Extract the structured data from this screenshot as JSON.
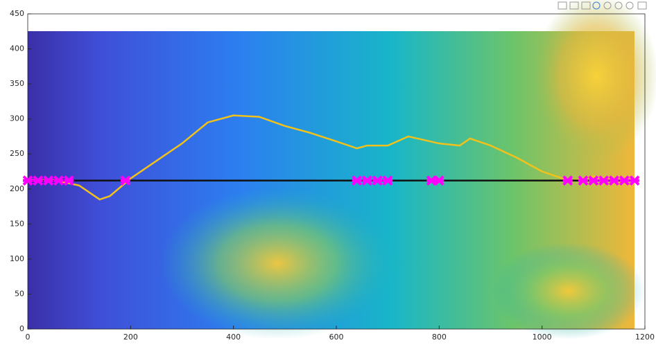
{
  "chart_data": {
    "type": "line",
    "xlim": [
      0,
      1200
    ],
    "xticks": [
      0,
      200,
      400,
      600,
      800,
      1000,
      1200
    ],
    "ylim": [
      0,
      450
    ],
    "yticks": [
      0,
      50,
      100,
      150,
      200,
      250,
      300,
      350,
      400,
      450
    ],
    "grid": false,
    "series": [
      {
        "color": "#f2c21b",
        "style": "line",
        "x": [
          0,
          50,
          100,
          140,
          160,
          200,
          250,
          300,
          350,
          400,
          450,
          500,
          550,
          600,
          640,
          660,
          700,
          740,
          800,
          840,
          860,
          900,
          950,
          1000,
          1040,
          1060,
          1100,
          1150,
          1180
        ],
        "values": [
          213,
          213,
          205,
          185,
          190,
          215,
          240,
          265,
          295,
          305,
          303,
          290,
          280,
          268,
          258,
          262,
          262,
          275,
          265,
          262,
          272,
          262,
          245,
          225,
          215,
          212,
          218,
          210,
          213
        ]
      },
      {
        "color": "#111111",
        "style": "line",
        "x": [
          0,
          1180
        ],
        "values": [
          212,
          212
        ]
      },
      {
        "color": "#ff00ff",
        "style": "points",
        "x": [
          0,
          20,
          40,
          60,
          80,
          190,
          640,
          660,
          680,
          700,
          785,
          800,
          1050,
          1080,
          1100,
          1120,
          1140,
          1160,
          1180
        ],
        "values": [
          212,
          212,
          212,
          212,
          212,
          212,
          212,
          212,
          212,
          212,
          212,
          212,
          212,
          212,
          212,
          212,
          212,
          212,
          212
        ]
      }
    ]
  }
}
